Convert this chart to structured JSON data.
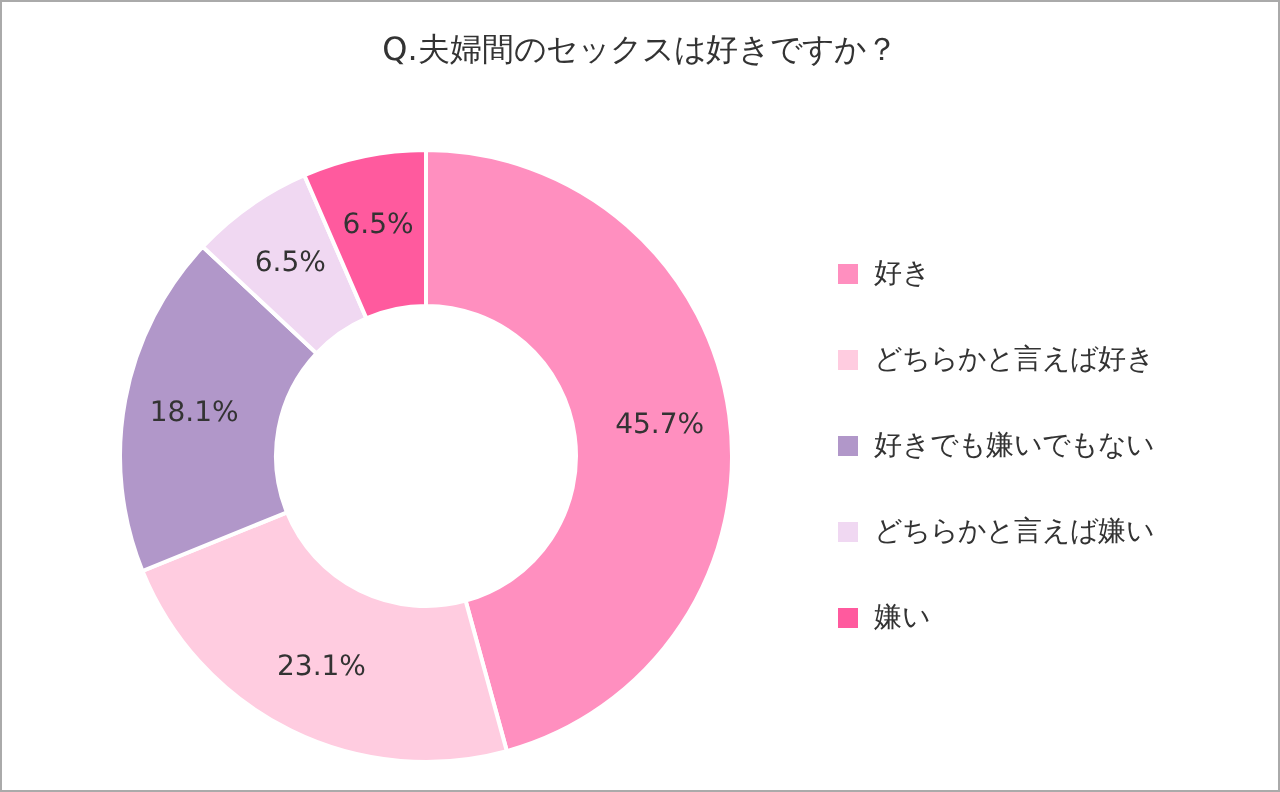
{
  "chart_data": {
    "type": "donut",
    "title": "Q.夫婦間のセックスは好きですか？",
    "categories": [
      "好き",
      "どちらかと言えば好き",
      "好きでも嫌いでもない",
      "どちらかと言えば嫌い",
      "嫌い"
    ],
    "values": [
      45.7,
      23.1,
      18.1,
      6.5,
      6.5
    ],
    "colors": [
      "#ff8fbf",
      "#ffcce0",
      "#b197c9",
      "#f0d8f2",
      "#ff5a9e"
    ],
    "value_labels": [
      "45.7%",
      "23.1%",
      "18.1%",
      "6.5%",
      "6.5%"
    ],
    "legend": "right"
  }
}
